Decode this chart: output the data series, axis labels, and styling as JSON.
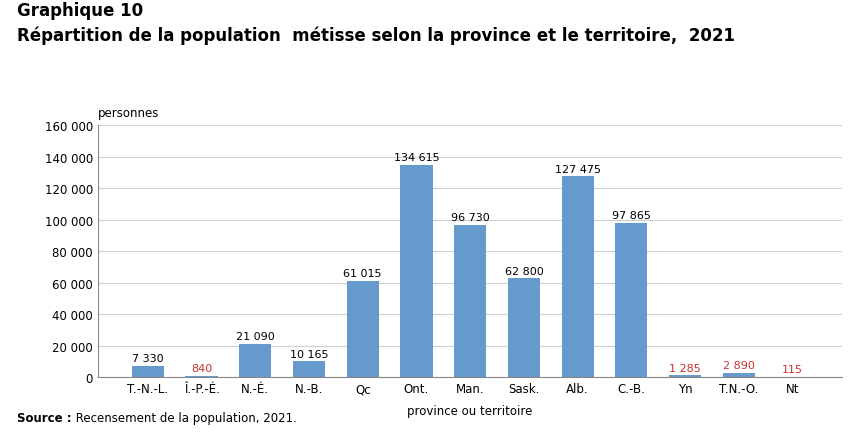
{
  "title_line1": "Graphique 10",
  "title_line2": "Répartition de la population  métisse selon la province et le territoire,  2021",
  "categories": [
    "T.-N.-L.",
    "Î.-P.-É.",
    "N.-É.",
    "N.-B.",
    "Qc",
    "Ont.",
    "Man.",
    "Sask.",
    "Alb.",
    "C.-B.",
    "Yn",
    "T.N.-O.",
    "Nt"
  ],
  "values": [
    7330,
    840,
    21090,
    10165,
    61015,
    134615,
    96730,
    62800,
    127475,
    97865,
    1285,
    2890,
    115
  ],
  "labels": [
    "7 330",
    "840",
    "21 090",
    "10 165",
    "61 015",
    "134 615",
    "96 730",
    "62 800",
    "127 475",
    "97 865",
    "1 285",
    "2 890",
    "115"
  ],
  "bar_color": "#6699CC",
  "small_bar_color": "#CC3333",
  "small_threshold": 5000,
  "units_label": "personnes",
  "xlabel": "province ou territoire",
  "ylim": [
    0,
    160000
  ],
  "yticks": [
    0,
    20000,
    40000,
    60000,
    80000,
    100000,
    120000,
    140000,
    160000
  ],
  "ytick_labels": [
    "0",
    "20 000",
    "40 000",
    "60 000",
    "80 000",
    "100 000",
    "120 000",
    "140 000",
    "160 000"
  ],
  "source_bold": "Source :",
  "source_rest": " Recensement de la population, 2021.",
  "background_color": "#ffffff",
  "grid_color": "#d0d0d0",
  "title_fontsize": 12,
  "label_fontsize": 8,
  "axis_fontsize": 8.5,
  "units_fontsize": 8.5,
  "source_fontsize": 8.5
}
